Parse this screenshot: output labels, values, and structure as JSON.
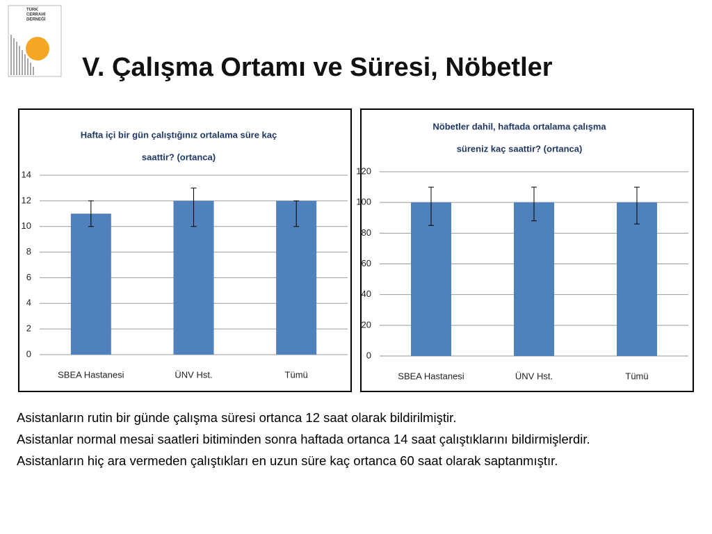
{
  "logo": [
    "TÜRK",
    "CERRAHİ",
    "DERNEĞİ"
  ],
  "slide": {
    "title": "V. Çalışma Ortamı ve Süresi, Nöbetler",
    "paragraphs": [
      "Asistanların rutin bir günde çalışma süresi ortanca 12 saat olarak bildirilmiştir.",
      "Asistanlar normal mesai saatleri bitiminden sonra haftada ortanca 14 saat çalıştıklarını bildirmişlerdir.",
      "Asistanların hiç ara vermeden çalıştıkları en uzun süre kaç ortanca 60 saat olarak saptanmıştır."
    ]
  },
  "chart_data": [
    {
      "type": "bar",
      "title": [
        "Hafta içi bir gün çalıştığınız ortalama süre kaç",
        "saattir? (ortanca)"
      ],
      "categories": [
        "SBEA Hastanesi",
        "ÜNV Hst.",
        "Tümü"
      ],
      "values": [
        11,
        12,
        12
      ],
      "error_minus": [
        1,
        2,
        2
      ],
      "error_plus": [
        1,
        1,
        0
      ],
      "color": "#4f81bd",
      "ylim": [
        0,
        14
      ],
      "yticks": [
        0,
        2,
        4,
        6,
        8,
        10,
        12,
        14
      ],
      "grid": true
    },
    {
      "type": "bar",
      "title": [
        "Nöbetler dahil, haftada ortalama çalışma",
        "süreniz kaç saattir? (ortanca)"
      ],
      "categories": [
        "SBEA Hastanesi",
        "ÜNV Hst.",
        "Tümü"
      ],
      "values": [
        100,
        100,
        100
      ],
      "error_minus": [
        15,
        12,
        14
      ],
      "error_plus": [
        10,
        10,
        10
      ],
      "color": "#4f81bd",
      "ylim": [
        0,
        120
      ],
      "yticks": [
        0,
        20,
        40,
        60,
        80,
        100,
        120
      ],
      "grid": true
    }
  ]
}
